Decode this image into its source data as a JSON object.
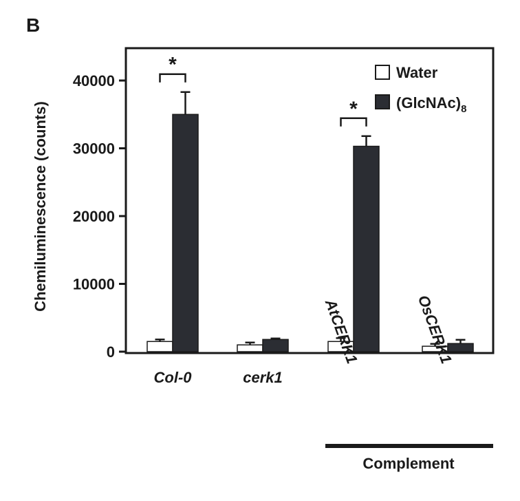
{
  "panel_label": "B",
  "chart_data": {
    "type": "bar",
    "ylabel": "Chemiluminescence  (counts)",
    "ylim": [
      0,
      44000
    ],
    "yticks": [
      0,
      10000,
      20000,
      30000,
      40000
    ],
    "grid": false,
    "legend_position": "top-right",
    "categories": [
      "Col-0",
      "cerk1",
      "AtCERK1",
      "OsCERK1"
    ],
    "category_styles": [
      "italic",
      "italic",
      "rotated",
      "rotated"
    ],
    "series": [
      {
        "name": "Water",
        "color": "#ffffff",
        "values": [
          1500,
          1000,
          1500,
          800
        ],
        "errors": [
          300,
          350,
          500,
          350
        ]
      },
      {
        "name": "(GlcNAc)",
        "name_sub": "8",
        "color": "#2b2d33",
        "values": [
          35000,
          1800,
          30300,
          1200
        ],
        "errors": [
          3300,
          150,
          1500,
          550
        ]
      }
    ],
    "group_label": {
      "text": "Complement",
      "categories": [
        "AtCERK1",
        "OsCERK1"
      ]
    },
    "significance": [
      {
        "category": "Col-0",
        "label": "*"
      },
      {
        "category": "AtCERK1",
        "label": "*"
      }
    ]
  }
}
